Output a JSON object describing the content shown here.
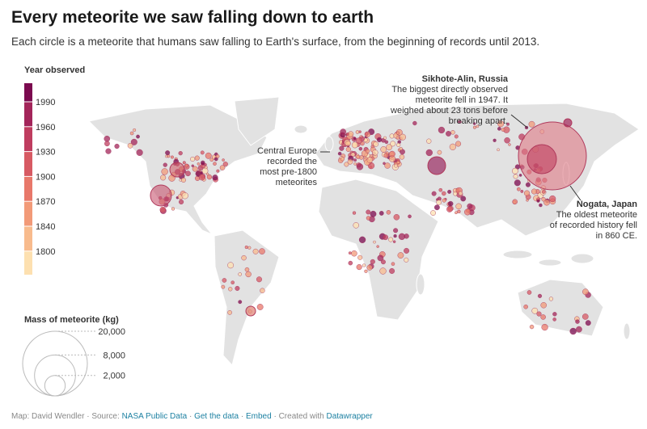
{
  "title": "Every meteorite we saw falling down to earth",
  "subtitle": "Each circle is a meteorite that humans saw falling to Earth's surface, from the beginning of records until 2013.",
  "color_legend": {
    "title": "Year observed",
    "ticks": [
      1990,
      1960,
      1930,
      1900,
      1870,
      1840,
      1800
    ],
    "colors": [
      "#7b0a4f",
      "#a3255a",
      "#bf3d5f",
      "#d75a63",
      "#e8786a",
      "#f29a78",
      "#f8bb8d",
      "#fde0b0"
    ]
  },
  "size_legend": {
    "title": "Mass of meteorite (kg)",
    "ticks": [
      {
        "value": 20000,
        "label": "20,000"
      },
      {
        "value": 8000,
        "label": "8,000"
      },
      {
        "value": 2000,
        "label": "2,000"
      }
    ]
  },
  "annotations": [
    {
      "title": "Sikhote-Alin, Russia",
      "lines": [
        "The biggest directly observed",
        "meteorite fell in 1947. It",
        "weighed about 23 tons before",
        "breaking apart."
      ]
    },
    {
      "lines": [
        "Central Europe",
        "recorded the",
        "most pre-1800",
        "meteorites"
      ]
    },
    {
      "title": "Nogata, Japan",
      "lines": [
        "The oldest meteorite",
        "of recorded history fell",
        "in 860 CE."
      ]
    }
  ],
  "footer": {
    "credit": "Map: David Wendler",
    "source_label": "Source:",
    "source": "NASA Public Data",
    "get_data": "Get the data",
    "embed": "Embed",
    "created": "Created with",
    "tool": "Datawrapper"
  }
}
